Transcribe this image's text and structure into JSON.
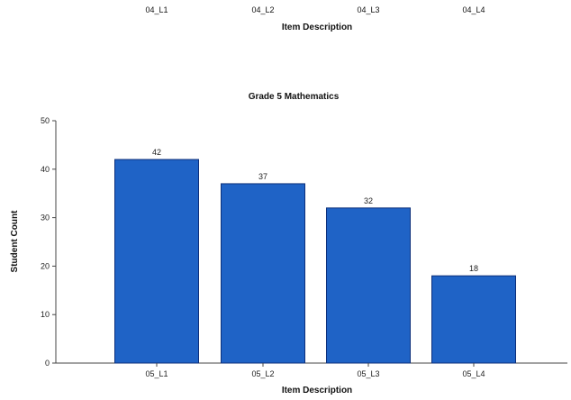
{
  "previous_chart": {
    "categories": [
      "04_L1",
      "04_L2",
      "04_L3",
      "04_L4"
    ],
    "xlabel": "Item Description"
  },
  "chart_data": {
    "type": "bar",
    "title": "Grade 5 Mathematics",
    "categories": [
      "05_L1",
      "05_L2",
      "05_L3",
      "05_L4"
    ],
    "values": [
      42,
      37,
      32,
      18
    ],
    "xlabel": "Item Description",
    "ylabel": "Student Count",
    "ylim": [
      0,
      50
    ],
    "yticks": [
      0,
      10,
      20,
      30,
      40,
      50
    ],
    "grid": false,
    "legend": "none",
    "bar_color": "#1f63c6",
    "bar_edge_color": "#0c2f7a"
  }
}
